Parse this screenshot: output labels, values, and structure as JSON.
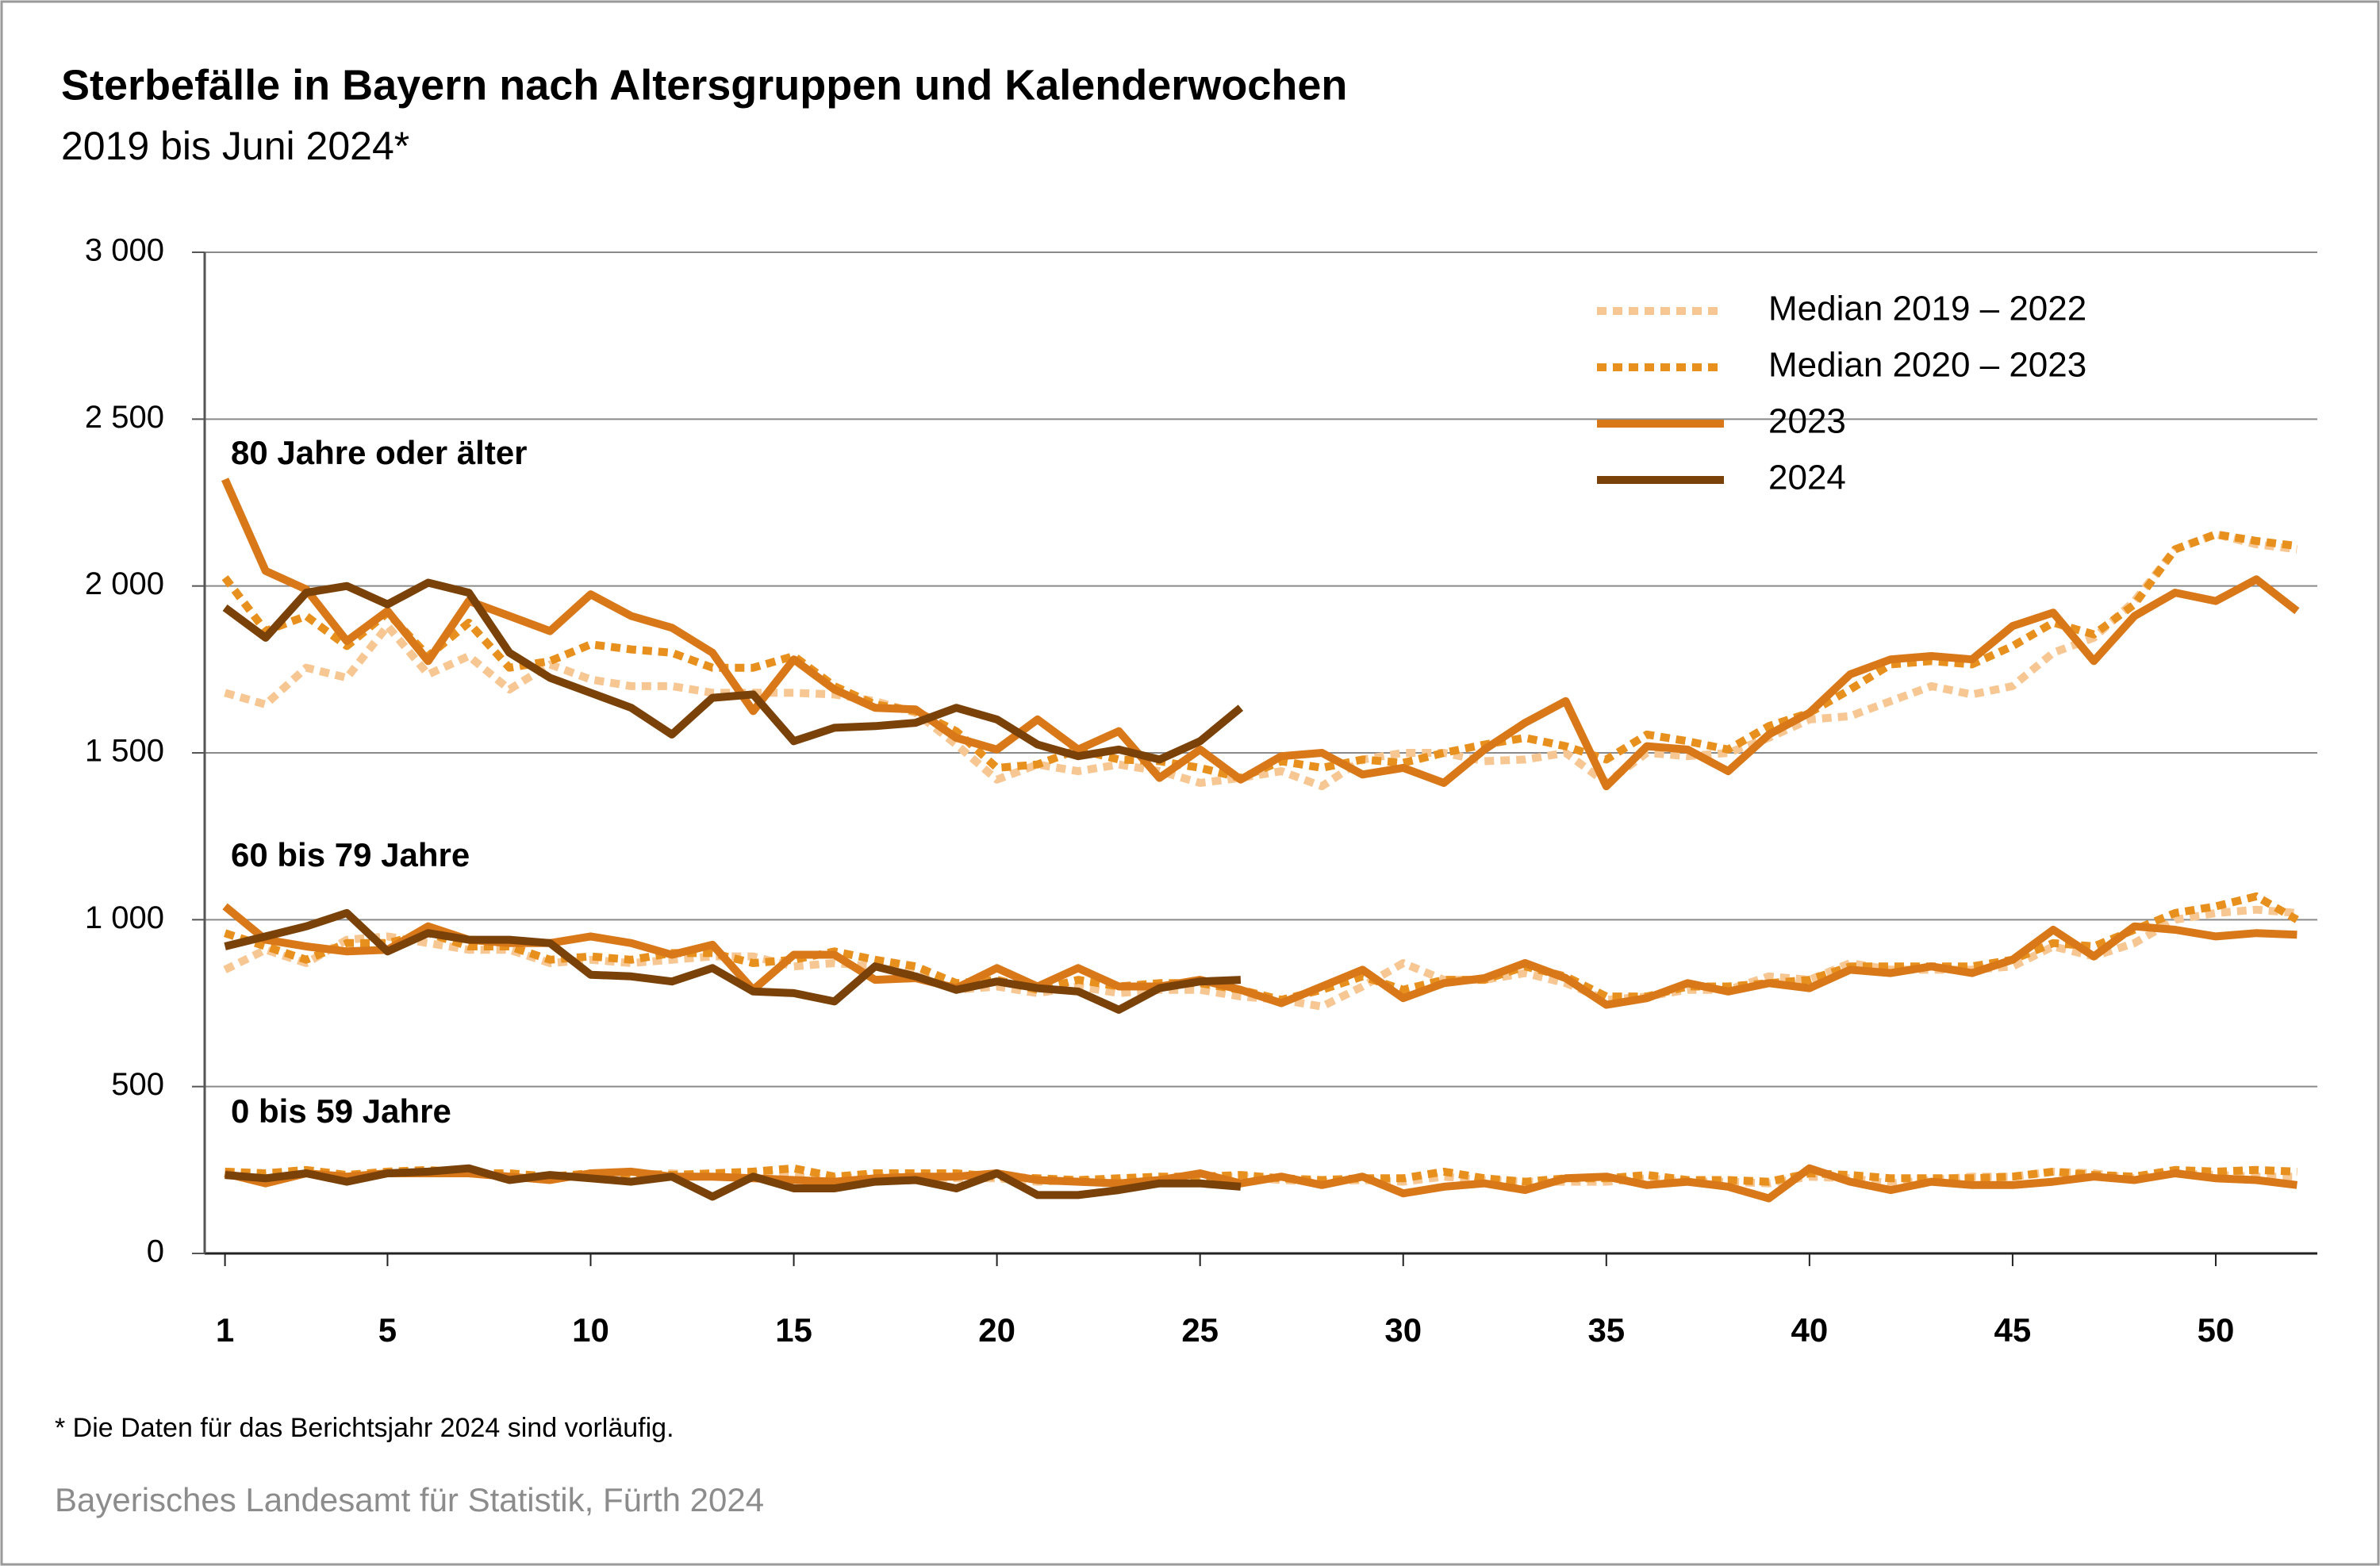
{
  "chart_data": {
    "type": "line",
    "title": "Sterbefälle in Bayern nach Altersgruppen und Kalenderwochen",
    "subtitle": "2019 bis Juni 2024*",
    "x": [
      1,
      2,
      3,
      4,
      5,
      6,
      7,
      8,
      9,
      10,
      11,
      12,
      13,
      14,
      15,
      16,
      17,
      18,
      19,
      20,
      21,
      22,
      23,
      24,
      25,
      26,
      27,
      28,
      29,
      30,
      31,
      32,
      33,
      34,
      35,
      36,
      37,
      38,
      39,
      40,
      41,
      42,
      43,
      44,
      45,
      46,
      47,
      48,
      49,
      50,
      51,
      52
    ],
    "xlim": [
      0.5,
      52.5
    ],
    "xticks": [
      1,
      5,
      10,
      15,
      20,
      25,
      30,
      35,
      40,
      45,
      50
    ],
    "ylim": [
      0,
      3000
    ],
    "yticks": [
      0,
      {
        "value": 500,
        "label": "500"
      },
      {
        "value": 1000,
        "label": "1 000"
      },
      {
        "value": 1500,
        "label": "1 500"
      },
      {
        "value": 2000,
        "label": "2 000"
      },
      {
        "value": 2500,
        "label": "2 500"
      },
      {
        "value": 3000,
        "label": "3 000"
      }
    ],
    "grid": true,
    "legend": {
      "position": "top-right",
      "entries": [
        {
          "name": "Median 2019 – 2022",
          "color": "#f7c793",
          "dashed": true
        },
        {
          "name": "Median 2020 – 2023",
          "color": "#e8901e",
          "dashed": true
        },
        {
          "name": "2023",
          "color": "#d97818",
          "dashed": false
        },
        {
          "name": "2024",
          "color": "#7a4209",
          "dashed": false
        }
      ]
    },
    "groups": [
      {
        "label": "80 Jahre oder älter",
        "series": [
          {
            "values": [
              1680,
              1645,
              1755,
              1725,
              1880,
              1735,
              1790,
              1690,
              1765,
              1720,
              1700,
              1700,
              1680,
              1680,
              1680,
              1675,
              1655,
              1620,
              1525,
              1420,
              1465,
              1445,
              1465,
              1445,
              1410,
              1425,
              1445,
              1400,
              1480,
              1500,
              1500,
              1475,
              1480,
              1500,
              1410,
              1500,
              1490,
              1500,
              1545,
              1600,
              1610,
              1655,
              1700,
              1675,
              1700,
              1800,
              1845,
              1955,
              2110,
              2155,
              2125,
              2110
            ]
          },
          {
            "values": [
              2025,
              1865,
              1910,
              1820,
              1920,
              1790,
              1890,
              1755,
              1775,
              1825,
              1810,
              1800,
              1755,
              1755,
              1790,
              1700,
              1645,
              1625,
              1565,
              1455,
              1465,
              1510,
              1480,
              1475,
              1455,
              1425,
              1475,
              1455,
              1480,
              1470,
              1500,
              1525,
              1545,
              1520,
              1480,
              1555,
              1535,
              1510,
              1580,
              1620,
              1690,
              1765,
              1775,
              1765,
              1820,
              1890,
              1855,
              1945,
              2110,
              2155,
              2135,
              2120
            ]
          },
          {
            "values": [
              2320,
              2045,
              1990,
              1835,
              1925,
              1775,
              1955,
              1910,
              1865,
              1975,
              1910,
              1875,
              1800,
              1625,
              1780,
              1690,
              1635,
              1630,
              1545,
              1510,
              1600,
              1510,
              1565,
              1425,
              1510,
              1420,
              1490,
              1500,
              1435,
              1455,
              1410,
              1510,
              1590,
              1655,
              1400,
              1520,
              1510,
              1445,
              1555,
              1620,
              1735,
              1780,
              1790,
              1780,
              1880,
              1920,
              1775,
              1910,
              1980,
              1955,
              2020,
              1925
            ]
          },
          {
            "values": [
              1935,
              1845,
              1980,
              2000,
              1945,
              2010,
              1980,
              1800,
              1725,
              1680,
              1635,
              1555,
              1665,
              1675,
              1535,
              1575,
              1580,
              1590,
              1635,
              1600,
              1525,
              1490,
              1510,
              1480,
              1535,
              1635,
              null,
              null,
              null,
              null,
              null,
              null,
              null,
              null,
              null,
              null,
              null,
              null,
              null,
              null,
              null,
              null,
              null,
              null,
              null,
              null,
              null,
              null,
              null,
              null,
              null,
              null
            ]
          }
        ]
      },
      {
        "label": "60 bis 79 Jahre",
        "series": [
          {
            "values": [
              850,
              910,
              870,
              940,
              950,
              930,
              910,
              910,
              870,
              880,
              870,
              880,
              890,
              890,
              860,
              870,
              860,
              840,
              790,
              800,
              780,
              800,
              780,
              790,
              790,
              770,
              760,
              740,
              800,
              870,
              820,
              820,
              840,
              810,
              760,
              770,
              790,
              790,
              830,
              820,
              870,
              850,
              850,
              850,
              860,
              920,
              890,
              930,
              1000,
              1020,
              1030,
              1020
            ]
          },
          {
            "values": [
              960,
              920,
              880,
              930,
              930,
              960,
              920,
              920,
              880,
              890,
              880,
              900,
              900,
              870,
              880,
              905,
              880,
              860,
              810,
              820,
              790,
              820,
              800,
              810,
              810,
              790,
              760,
              790,
              830,
              790,
              820,
              820,
              860,
              830,
              770,
              770,
              800,
              800,
              810,
              820,
              860,
              860,
              860,
              860,
              880,
              930,
              920,
              970,
              1020,
              1040,
              1070,
              1000
            ]
          },
          {
            "values": [
              1040,
              940,
              920,
              905,
              910,
              980,
              940,
              930,
              930,
              950,
              930,
              895,
              925,
              790,
              895,
              895,
              820,
              825,
              795,
              855,
              800,
              855,
              800,
              800,
              820,
              790,
              750,
              800,
              850,
              765,
              810,
              825,
              870,
              825,
              745,
              765,
              810,
              785,
              810,
              795,
              850,
              840,
              860,
              840,
              880,
              970,
              890,
              980,
              970,
              950,
              960,
              955
            ]
          },
          {
            "values": [
              920,
              950,
              980,
              1020,
              905,
              960,
              940,
              940,
              930,
              835,
              830,
              815,
              855,
              785,
              780,
              755,
              860,
              830,
              790,
              815,
              795,
              785,
              730,
              795,
              815,
              820,
              null,
              null,
              null,
              null,
              null,
              null,
              null,
              null,
              null,
              null,
              null,
              null,
              null,
              null,
              null,
              null,
              null,
              null,
              null,
              null,
              null,
              null,
              null,
              null,
              null,
              null
            ]
          }
        ]
      },
      {
        "label": "0 bis 59 Jahre",
        "series": [
          {
            "values": [
              245,
              235,
              240,
              230,
              240,
              245,
              240,
              230,
              230,
              235,
              230,
              240,
              230,
              240,
              230,
              225,
              230,
              230,
              225,
              225,
              215,
              220,
              215,
              220,
              230,
              230,
              220,
              215,
              220,
              215,
              230,
              220,
              215,
              215,
              215,
              225,
              215,
              215,
              210,
              230,
              225,
              210,
              220,
              230,
              230,
              245,
              240,
              225,
              240,
              235,
              230,
              230
            ]
          },
          {
            "values": [
              245,
              240,
              250,
              235,
              245,
              250,
              240,
              240,
              230,
              240,
              240,
              235,
              240,
              245,
              255,
              230,
              240,
              240,
              240,
              230,
              225,
              220,
              225,
              230,
              230,
              235,
              225,
              220,
              225,
              225,
              245,
              225,
              215,
              225,
              225,
              235,
              220,
              220,
              215,
              240,
              235,
              225,
              225,
              225,
              230,
              245,
              235,
              230,
              250,
              245,
              250,
              245
            ]
          },
          {
            "values": [
              240,
              210,
              240,
              230,
              240,
              240,
              240,
              230,
              220,
              240,
              245,
              230,
              230,
              225,
              220,
              215,
              225,
              230,
              230,
              240,
              220,
              215,
              210,
              220,
              240,
              210,
              230,
              205,
              230,
              180,
              200,
              210,
              190,
              225,
              230,
              205,
              215,
              200,
              165,
              255,
              215,
              190,
              215,
              205,
              205,
              215,
              230,
              220,
              240,
              225,
              220,
              205
            ]
          },
          {
            "values": [
              235,
              225,
              240,
              215,
              240,
              245,
              255,
              220,
              235,
              225,
              215,
              230,
              170,
              230,
              195,
              195,
              215,
              220,
              195,
              240,
              175,
              175,
              190,
              210,
              210,
              200,
              null,
              null,
              null,
              null,
              null,
              null,
              null,
              null,
              null,
              null,
              null,
              null,
              null,
              null,
              null,
              null,
              null,
              null,
              null,
              null,
              null,
              null,
              null,
              null,
              null,
              null
            ]
          }
        ]
      }
    ],
    "footnote": "* Die Daten für das Berichtsjahr 2024 sind vorläufig.",
    "source": "Bayerisches Landesamt für Statistik, Fürth 2024"
  }
}
